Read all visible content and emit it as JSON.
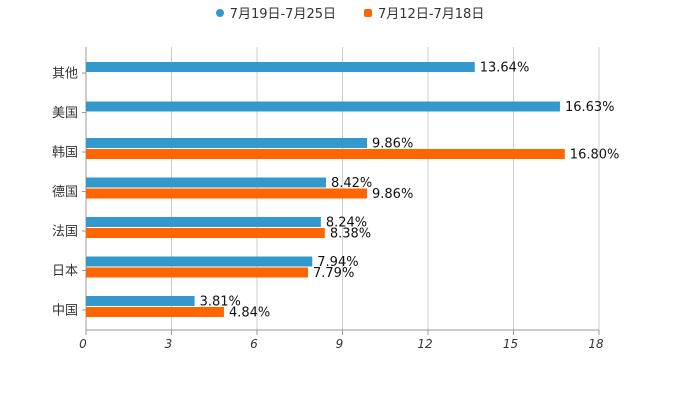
{
  "chart_data": {
    "type": "bar",
    "orientation": "horizontal",
    "categories": [
      "其他",
      "美国",
      "韩国",
      "德国",
      "法国",
      "日本",
      "中国"
    ],
    "series": [
      {
        "name": "7月19日-7月25日",
        "color": "#3399cc",
        "values": [
          13.64,
          16.63,
          9.86,
          8.42,
          8.24,
          7.94,
          3.81
        ],
        "labels": [
          "13.64%",
          "16.63%",
          "9.86%",
          "8.42%",
          "8.24%",
          "7.94%",
          "3.81%"
        ]
      },
      {
        "name": "7月12日-7月18日",
        "color": "#ff6600",
        "values": [
          null,
          null,
          16.8,
          9.86,
          8.38,
          7.79,
          4.84
        ],
        "labels": [
          null,
          null,
          "16.80%",
          "9.86%",
          "8.38%",
          "7.79%",
          "4.84%"
        ]
      }
    ],
    "xlim": [
      0,
      18
    ],
    "xticks": [
      "0",
      "3",
      "6",
      "9",
      "12",
      "15",
      "18"
    ],
    "grid": true,
    "legend_position": "top-center",
    "title": "",
    "xlabel": "",
    "ylabel": ""
  }
}
